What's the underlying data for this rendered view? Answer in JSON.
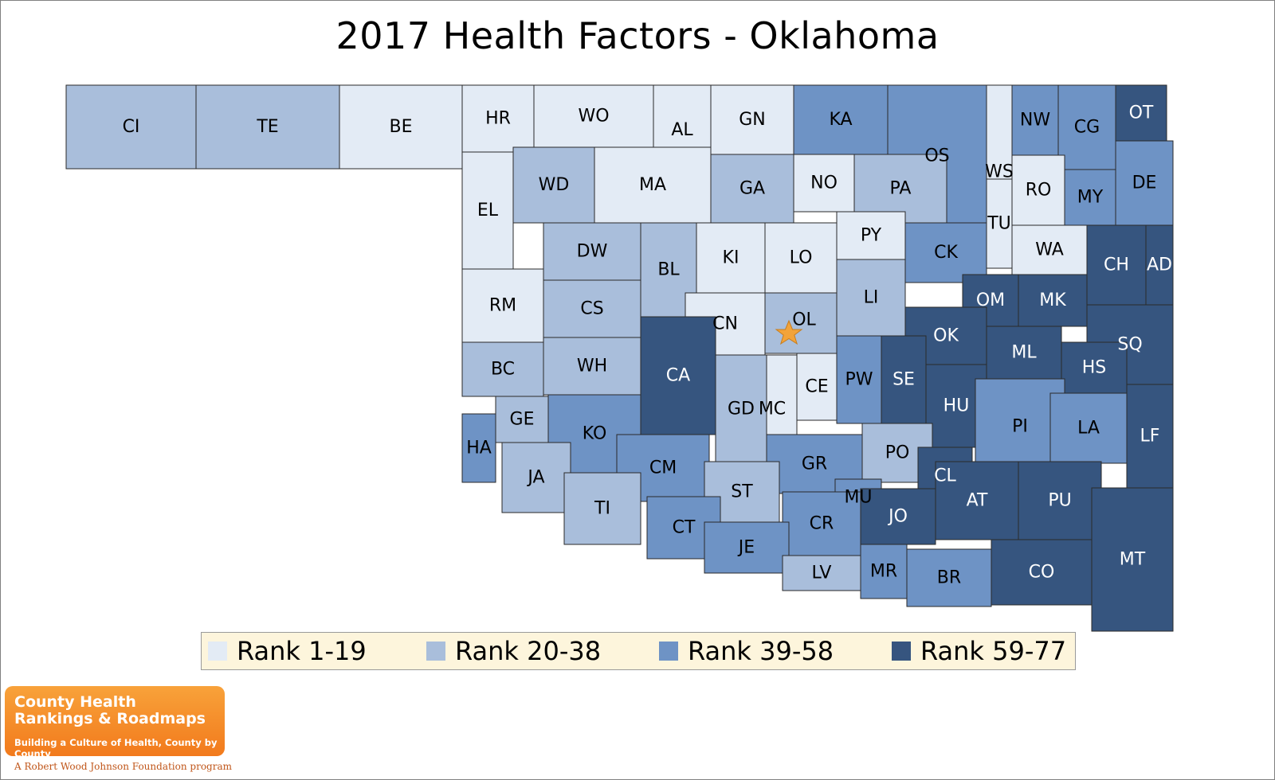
{
  "title": "2017 Health Factors - Oklahoma",
  "colors": {
    "rank1": "#e3ebf5",
    "rank2": "#a9bedb",
    "rank3": "#6e93c5",
    "rank4": "#36557f",
    "border": "#2a2a2a",
    "star": "#f2a33a"
  },
  "legend": [
    {
      "label": "Rank 1-19",
      "rank": 1
    },
    {
      "label": "Rank 20-38",
      "rank": 2
    },
    {
      "label": "Rank 39-58",
      "rank": 3
    },
    {
      "label": "Rank 59-77",
      "rank": 4
    }
  ],
  "map": {
    "state": "Oklahoma",
    "capital_county": "OL",
    "capital_marker": "star-icon",
    "counties": [
      {
        "code": "CI",
        "rank": 2
      },
      {
        "code": "TE",
        "rank": 2
      },
      {
        "code": "BE",
        "rank": 1
      },
      {
        "code": "HR",
        "rank": 1
      },
      {
        "code": "WO",
        "rank": 1
      },
      {
        "code": "AL",
        "rank": 1
      },
      {
        "code": "GN",
        "rank": 1
      },
      {
        "code": "KA",
        "rank": 3
      },
      {
        "code": "OS",
        "rank": 3
      },
      {
        "code": "WS",
        "rank": 1
      },
      {
        "code": "NW",
        "rank": 3
      },
      {
        "code": "CG",
        "rank": 3
      },
      {
        "code": "OT",
        "rank": 4
      },
      {
        "code": "EL",
        "rank": 1
      },
      {
        "code": "WD",
        "rank": 2
      },
      {
        "code": "MA",
        "rank": 1
      },
      {
        "code": "GA",
        "rank": 2
      },
      {
        "code": "NO",
        "rank": 1
      },
      {
        "code": "PA",
        "rank": 2
      },
      {
        "code": "RO",
        "rank": 1
      },
      {
        "code": "MY",
        "rank": 3
      },
      {
        "code": "DE",
        "rank": 3
      },
      {
        "code": "DW",
        "rank": 2
      },
      {
        "code": "BL",
        "rank": 2
      },
      {
        "code": "KI",
        "rank": 1
      },
      {
        "code": "LO",
        "rank": 1
      },
      {
        "code": "PY",
        "rank": 1
      },
      {
        "code": "TU",
        "rank": 1
      },
      {
        "code": "WA",
        "rank": 1
      },
      {
        "code": "CK",
        "rank": 3
      },
      {
        "code": "CH",
        "rank": 4
      },
      {
        "code": "AD",
        "rank": 4
      },
      {
        "code": "RM",
        "rank": 1
      },
      {
        "code": "CS",
        "rank": 2
      },
      {
        "code": "CN",
        "rank": 1
      },
      {
        "code": "OL",
        "rank": 2
      },
      {
        "code": "LI",
        "rank": 2
      },
      {
        "code": "OM",
        "rank": 4
      },
      {
        "code": "MK",
        "rank": 4
      },
      {
        "code": "OK",
        "rank": 4
      },
      {
        "code": "SQ",
        "rank": 4
      },
      {
        "code": "BC",
        "rank": 2
      },
      {
        "code": "WH",
        "rank": 2
      },
      {
        "code": "CA",
        "rank": 4
      },
      {
        "code": "ML",
        "rank": 4
      },
      {
        "code": "CE",
        "rank": 1
      },
      {
        "code": "PW",
        "rank": 3
      },
      {
        "code": "SE",
        "rank": 4
      },
      {
        "code": "HS",
        "rank": 4
      },
      {
        "code": "GE",
        "rank": 2
      },
      {
        "code": "GD",
        "rank": 2
      },
      {
        "code": "MC",
        "rank": 1
      },
      {
        "code": "HU",
        "rank": 4
      },
      {
        "code": "PI",
        "rank": 3
      },
      {
        "code": "LF",
        "rank": 4
      },
      {
        "code": "KO",
        "rank": 3
      },
      {
        "code": "LA",
        "rank": 3
      },
      {
        "code": "HA",
        "rank": 3
      },
      {
        "code": "JA",
        "rank": 2
      },
      {
        "code": "CM",
        "rank": 3
      },
      {
        "code": "GR",
        "rank": 3
      },
      {
        "code": "PO",
        "rank": 2
      },
      {
        "code": "CL",
        "rank": 4
      },
      {
        "code": "ST",
        "rank": 2
      },
      {
        "code": "TI",
        "rank": 2
      },
      {
        "code": "MU",
        "rank": 3
      },
      {
        "code": "AT",
        "rank": 4
      },
      {
        "code": "PU",
        "rank": 4
      },
      {
        "code": "CT",
        "rank": 3
      },
      {
        "code": "JO",
        "rank": 4
      },
      {
        "code": "CR",
        "rank": 3
      },
      {
        "code": "JE",
        "rank": 3
      },
      {
        "code": "MT",
        "rank": 4
      },
      {
        "code": "CO",
        "rank": 4
      },
      {
        "code": "MR",
        "rank": 3
      },
      {
        "code": "LV",
        "rank": 2
      },
      {
        "code": "BR",
        "rank": 3
      }
    ]
  },
  "logo": {
    "line1": "County Health",
    "line2": "Rankings & Roadmaps",
    "tagline": "Building a Culture of Health, County by County",
    "program": "A Robert Wood Johnson Foundation program"
  }
}
